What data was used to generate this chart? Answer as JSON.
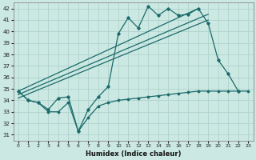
{
  "xlabel": "Humidex (Indice chaleur)",
  "xlim": [
    -0.5,
    23.5
  ],
  "ylim": [
    30.5,
    42.5
  ],
  "xticks": [
    0,
    1,
    2,
    3,
    4,
    5,
    6,
    7,
    8,
    9,
    10,
    11,
    12,
    13,
    14,
    15,
    16,
    17,
    18,
    19,
    20,
    21,
    22,
    23
  ],
  "yticks": [
    31,
    32,
    33,
    34,
    35,
    36,
    37,
    38,
    39,
    40,
    41,
    42
  ],
  "background_color": "#cce8e2",
  "grid_color": "#aacfc9",
  "line_color": "#1a6b6b",
  "curve_main_x": [
    0,
    1,
    2,
    3,
    4,
    5,
    6,
    7,
    8,
    9,
    10,
    11,
    12,
    13,
    14,
    15,
    16,
    17,
    18,
    19,
    20,
    21,
    22
  ],
  "curve_main_y": [
    34.8,
    34.0,
    33.8,
    33.2,
    34.2,
    34.3,
    31.3,
    33.2,
    34.3,
    35.2,
    39.8,
    41.2,
    40.3,
    42.2,
    41.4,
    42.0,
    41.4,
    41.5,
    42.0,
    40.7,
    37.5,
    36.3,
    34.8
  ],
  "curve_min_x": [
    0,
    1,
    2,
    3,
    4,
    5,
    6,
    7,
    8,
    9,
    10,
    11,
    12,
    13,
    14,
    15,
    16,
    17,
    18,
    19,
    20,
    21,
    22,
    23
  ],
  "curve_min_y": [
    34.8,
    34.0,
    33.8,
    33.0,
    33.0,
    33.8,
    31.3,
    32.5,
    33.5,
    33.8,
    34.0,
    34.1,
    34.2,
    34.3,
    34.4,
    34.5,
    34.6,
    34.7,
    34.8,
    34.8,
    34.8,
    34.8,
    34.8,
    34.8
  ],
  "trend1_x": [
    0,
    18
  ],
  "trend1_y": [
    34.8,
    42.0
  ],
  "trend2_x": [
    0,
    19
  ],
  "trend2_y": [
    34.5,
    41.5
  ],
  "trend3_x": [
    0,
    19
  ],
  "trend3_y": [
    34.2,
    41.0
  ]
}
